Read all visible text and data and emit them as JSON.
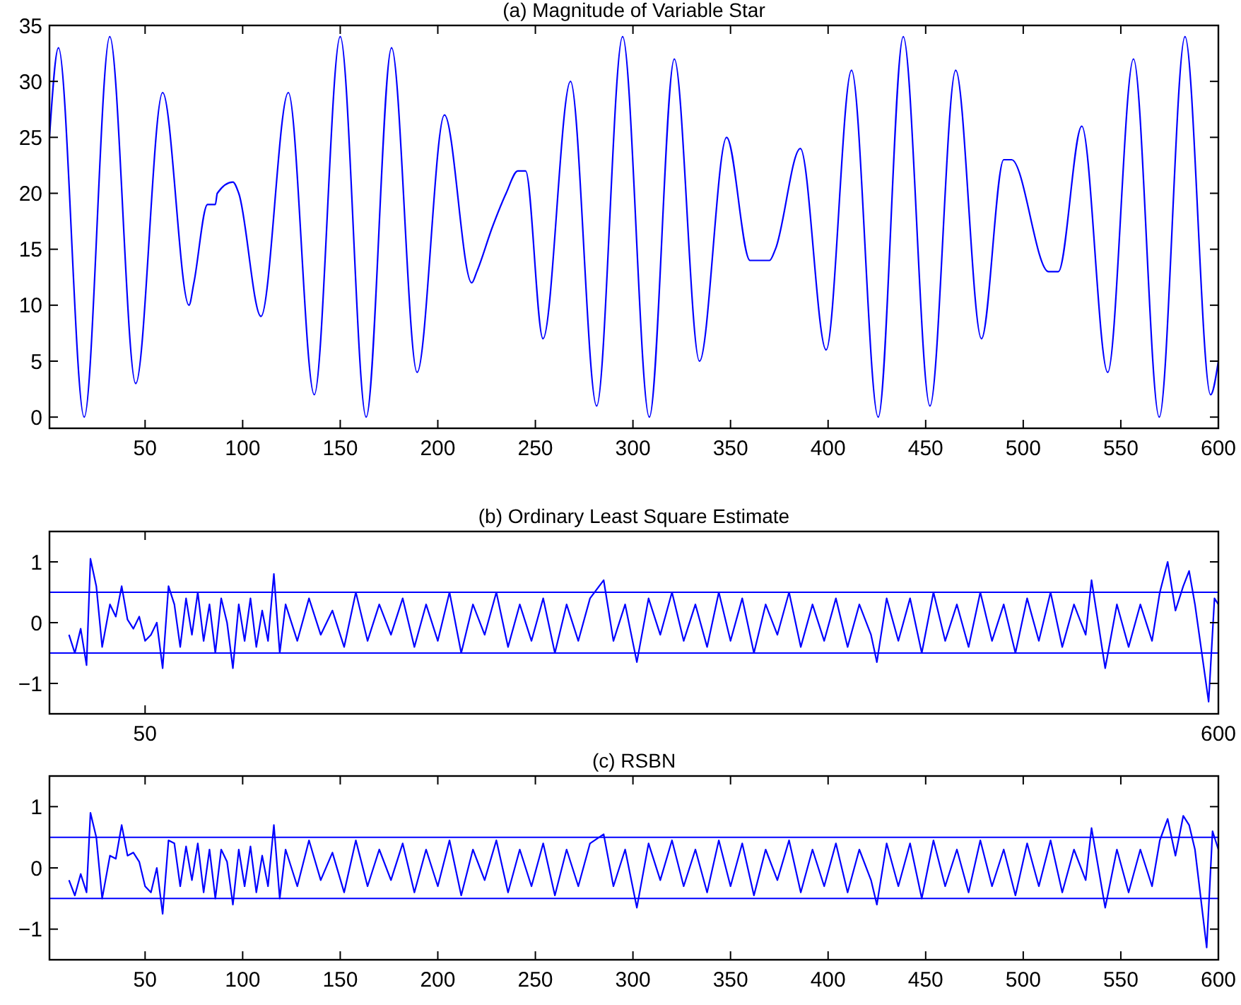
{
  "chart_data": [
    {
      "type": "line",
      "title": "(a) Magnitude of Variable Star",
      "xlim": [
        1,
        600
      ],
      "ylim": [
        -1,
        35
      ],
      "xticks": [
        50,
        100,
        150,
        200,
        250,
        300,
        350,
        400,
        450,
        500,
        550,
        600
      ],
      "yticks": [
        0,
        5,
        10,
        15,
        20,
        25,
        30,
        35
      ],
      "grid": false,
      "x": [
        1,
        5.6,
        18.8,
        31.9,
        45.2,
        59,
        72.5,
        75,
        82,
        86,
        87,
        95,
        98,
        109.4,
        123.4,
        136.7,
        150,
        163.3,
        176.3,
        189.4,
        203.4,
        217.4,
        220,
        228,
        235,
        241,
        245,
        253.9,
        268,
        281.4,
        294.7,
        308.4,
        321.2,
        334.1,
        348,
        360,
        370,
        373,
        385.8,
        399,
        412,
        425.7,
        438.5,
        452.2,
        465.4,
        478.6,
        490,
        494,
        513,
        518,
        530,
        543.3,
        556.5,
        569.7,
        582.9,
        596,
        600
      ],
      "series": [
        {
          "color": "#0000ff",
          "values": [
            25,
            33,
            0,
            34,
            3,
            29,
            10,
            12,
            19,
            19,
            20,
            21,
            20,
            9,
            29,
            2,
            34,
            0,
            33,
            4,
            27,
            12,
            13,
            17,
            20,
            22,
            22,
            7,
            30,
            1,
            34,
            0,
            32,
            5,
            25,
            14,
            14,
            15,
            24,
            6,
            31,
            0,
            34,
            1,
            31,
            7,
            23,
            23,
            13,
            13,
            26,
            4,
            32,
            0,
            34,
            2,
            5
          ]
        }
      ]
    },
    {
      "type": "line",
      "title": "(b) Ordinary Least Square Estimate",
      "xlim": [
        1,
        600
      ],
      "ylim": [
        -1.5,
        1.5
      ],
      "xticks": [
        50,
        600
      ],
      "yticks": [
        {
          "value": -1,
          "label": "−1"
        },
        0,
        1
      ],
      "grid": false,
      "ref_lines": [
        {
          "axis": "y",
          "value": 0.5,
          "color": "#0000ff"
        },
        {
          "axis": "y",
          "value": -0.5,
          "color": "#0000ff"
        }
      ],
      "x": [
        11,
        14,
        17,
        20,
        22,
        25,
        28,
        32,
        35,
        38,
        41,
        44,
        47,
        50,
        53,
        56,
        59,
        62,
        65,
        68,
        71,
        74,
        77,
        80,
        83,
        86,
        89,
        92,
        95,
        98,
        101,
        104,
        107,
        110,
        113,
        116,
        119,
        122,
        128,
        134,
        140,
        146,
        152,
        158,
        164,
        170,
        176,
        182,
        188,
        194,
        200,
        206,
        212,
        218,
        224,
        230,
        236,
        242,
        248,
        254,
        260,
        266,
        272,
        278,
        285,
        290,
        296,
        302,
        308,
        314,
        320,
        326,
        332,
        338,
        344,
        350,
        356,
        362,
        368,
        374,
        380,
        386,
        392,
        398,
        404,
        410,
        416,
        422,
        425,
        430,
        436,
        442,
        448,
        454,
        460,
        466,
        472,
        478,
        484,
        490,
        496,
        502,
        508,
        514,
        520,
        526,
        532,
        535,
        542,
        548,
        554,
        560,
        566,
        570,
        574,
        578,
        582,
        585,
        588,
        592,
        595,
        598,
        600
      ],
      "series": [
        {
          "color": "#0000ff",
          "values": [
            -0.2,
            -0.5,
            -0.1,
            -0.7,
            1.05,
            0.6,
            -0.4,
            0.3,
            0.1,
            0.6,
            0.05,
            -0.1,
            0.1,
            -0.3,
            -0.2,
            0,
            -0.75,
            0.6,
            0.3,
            -0.4,
            0.4,
            -0.2,
            0.5,
            -0.3,
            0.3,
            -0.5,
            0.4,
            0,
            -0.75,
            0.3,
            -0.3,
            0.4,
            -0.4,
            0.2,
            -0.3,
            0.8,
            -0.5,
            0.3,
            -0.3,
            0.4,
            -0.2,
            0.2,
            -0.4,
            0.5,
            -0.3,
            0.3,
            -0.2,
            0.4,
            -0.4,
            0.3,
            -0.3,
            0.5,
            -0.5,
            0.3,
            -0.2,
            0.5,
            -0.4,
            0.3,
            -0.3,
            0.4,
            -0.5,
            0.3,
            -0.3,
            0.4,
            0.7,
            -0.3,
            0.3,
            -0.65,
            0.4,
            -0.2,
            0.5,
            -0.3,
            0.3,
            -0.4,
            0.5,
            -0.3,
            0.4,
            -0.5,
            0.3,
            -0.2,
            0.5,
            -0.4,
            0.3,
            -0.3,
            0.4,
            -0.4,
            0.3,
            -0.2,
            -0.65,
            0.4,
            -0.3,
            0.4,
            -0.5,
            0.5,
            -0.3,
            0.3,
            -0.4,
            0.5,
            -0.3,
            0.3,
            -0.5,
            0.4,
            -0.3,
            0.5,
            -0.4,
            0.3,
            -0.2,
            0.7,
            -0.75,
            0.3,
            -0.4,
            0.3,
            -0.3,
            0.5,
            1,
            0.2,
            0.6,
            0.85,
            0.3,
            null,
            -1.3,
            0.4,
            0.3
          ]
        }
      ]
    },
    {
      "type": "line",
      "title": "(c) RSBN",
      "xlim": [
        1,
        600
      ],
      "ylim": [
        -1.5,
        1.5
      ],
      "xticks": [
        50,
        100,
        150,
        200,
        250,
        300,
        350,
        400,
        450,
        500,
        550,
        600
      ],
      "yticks": [
        {
          "value": -1,
          "label": "−1"
        },
        0,
        1
      ],
      "grid": false,
      "ref_lines": [
        {
          "axis": "y",
          "value": 0.5,
          "color": "#0000ff"
        },
        {
          "axis": "y",
          "value": -0.5,
          "color": "#0000ff"
        }
      ],
      "x": [
        11,
        14,
        17,
        20,
        22,
        25,
        28,
        32,
        35,
        38,
        41,
        44,
        47,
        50,
        53,
        56,
        59,
        62,
        65,
        68,
        71,
        74,
        77,
        80,
        83,
        86,
        89,
        92,
        95,
        98,
        101,
        104,
        107,
        110,
        113,
        116,
        119,
        122,
        128,
        134,
        140,
        146,
        152,
        158,
        164,
        170,
        176,
        182,
        188,
        194,
        200,
        206,
        212,
        218,
        224,
        230,
        236,
        242,
        248,
        254,
        260,
        266,
        272,
        278,
        285,
        290,
        296,
        302,
        308,
        314,
        320,
        326,
        332,
        338,
        344,
        350,
        356,
        362,
        368,
        374,
        380,
        386,
        392,
        398,
        404,
        410,
        416,
        422,
        425,
        430,
        436,
        442,
        448,
        454,
        460,
        466,
        472,
        478,
        484,
        490,
        496,
        502,
        508,
        514,
        520,
        526,
        532,
        535,
        542,
        548,
        554,
        560,
        566,
        570,
        574,
        578,
        582,
        585,
        588,
        590,
        594,
        597,
        600
      ],
      "series": [
        {
          "color": "#0000ff",
          "values": [
            -0.2,
            -0.45,
            -0.1,
            -0.4,
            0.9,
            0.5,
            -0.5,
            0.2,
            0.15,
            0.7,
            0.2,
            0.25,
            0.1,
            -0.3,
            -0.4,
            0,
            -0.75,
            0.45,
            0.4,
            -0.3,
            0.35,
            -0.2,
            0.4,
            -0.4,
            0.3,
            -0.5,
            0.3,
            0.1,
            -0.6,
            0.3,
            -0.3,
            0.35,
            -0.4,
            0.2,
            -0.3,
            0.7,
            -0.5,
            0.3,
            -0.3,
            0.45,
            -0.2,
            0.25,
            -0.4,
            0.45,
            -0.3,
            0.3,
            -0.2,
            0.4,
            -0.4,
            0.3,
            -0.3,
            0.45,
            -0.45,
            0.3,
            -0.2,
            0.45,
            -0.4,
            0.3,
            -0.3,
            0.4,
            -0.45,
            0.3,
            -0.3,
            0.4,
            0.55,
            -0.3,
            0.3,
            -0.65,
            0.4,
            -0.2,
            0.45,
            -0.3,
            0.3,
            -0.4,
            0.45,
            -0.3,
            0.4,
            -0.45,
            0.3,
            -0.2,
            0.45,
            -0.4,
            0.3,
            -0.3,
            0.4,
            -0.4,
            0.3,
            -0.2,
            -0.6,
            0.4,
            -0.3,
            0.4,
            -0.5,
            0.45,
            -0.3,
            0.3,
            -0.4,
            0.45,
            -0.3,
            0.3,
            -0.45,
            0.4,
            -0.3,
            0.45,
            -0.4,
            0.3,
            -0.2,
            0.65,
            -0.65,
            0.3,
            -0.4,
            0.3,
            -0.3,
            0.45,
            0.8,
            0.2,
            0.85,
            0.7,
            0.3,
            null,
            -1.3,
            0.6,
            0.3
          ]
        }
      ]
    }
  ]
}
